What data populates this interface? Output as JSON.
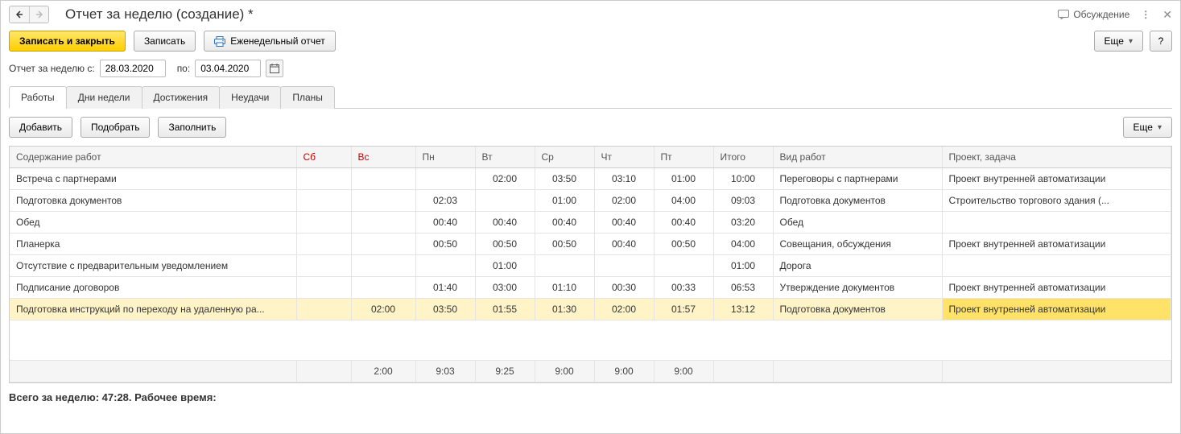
{
  "header": {
    "title": "Отчет за неделю (создание) *",
    "discussion": "Обсуждение"
  },
  "toolbar": {
    "save_close": "Записать и закрыть",
    "save": "Записать",
    "weekly_report": "Еженедельный отчет",
    "more": "Еще",
    "help": "?"
  },
  "dates": {
    "label_from": "Отчет за неделю с:",
    "from": "28.03.2020",
    "label_to": "по:",
    "to": "03.04.2020"
  },
  "tabs": {
    "t0": "Работы",
    "t1": "Дни недели",
    "t2": "Достижения",
    "t3": "Неудачи",
    "t4": "Планы"
  },
  "sub": {
    "add": "Добавить",
    "pick": "Подобрать",
    "fill": "Заполнить",
    "more": "Еще"
  },
  "cols": {
    "desc": "Содержание работ",
    "sa": "Сб",
    "su": "Вс",
    "mo": "Пн",
    "tu": "Вт",
    "we": "Ср",
    "th": "Чт",
    "fr": "Пт",
    "total": "Итого",
    "kind": "Вид работ",
    "proj": "Проект, задача"
  },
  "rows": [
    {
      "desc": "Встреча с партнерами",
      "sa": "",
      "su": "",
      "mo": "",
      "tu": "02:00",
      "we": "03:50",
      "th": "03:10",
      "fr": "01:00",
      "total": "10:00",
      "kind": "Переговоры с партнерами",
      "proj": "Проект внутренней автоматизации"
    },
    {
      "desc": "Подготовка документов",
      "sa": "",
      "su": "",
      "mo": "02:03",
      "tu": "",
      "we": "01:00",
      "th": "02:00",
      "fr": "04:00",
      "total": "09:03",
      "kind": "Подготовка документов",
      "proj": "Строительство торгового здания (..."
    },
    {
      "desc": "Обед",
      "sa": "",
      "su": "",
      "mo": "00:40",
      "tu": "00:40",
      "we": "00:40",
      "th": "00:40",
      "fr": "00:40",
      "total": "03:20",
      "kind": "Обед",
      "proj": ""
    },
    {
      "desc": "Планерка",
      "sa": "",
      "su": "",
      "mo": "00:50",
      "tu": "00:50",
      "we": "00:50",
      "th": "00:40",
      "fr": "00:50",
      "total": "04:00",
      "kind": "Совещания, обсуждения",
      "proj": "Проект внутренней автоматизации"
    },
    {
      "desc": "Отсутствие с предварительным уведомлением",
      "sa": "",
      "su": "",
      "mo": "",
      "tu": "01:00",
      "we": "",
      "th": "",
      "fr": "",
      "total": "01:00",
      "kind": "Дорога",
      "proj": ""
    },
    {
      "desc": "Подписание договоров",
      "sa": "",
      "su": "",
      "mo": "01:40",
      "tu": "03:00",
      "we": "01:10",
      "th": "00:30",
      "fr": "00:33",
      "total": "06:53",
      "kind": "Утверждение документов",
      "proj": "Проект внутренней автоматизации"
    },
    {
      "desc": "Подготовка инструкций по переходу на удаленную ра...",
      "sa": "",
      "su": "02:00",
      "mo": "03:50",
      "tu": "01:55",
      "we": "01:30",
      "th": "02:00",
      "fr": "01:57",
      "total": "13:12",
      "kind": "Подготовка документов",
      "proj": "Проект внутренней автоматизации",
      "selected": true
    }
  ],
  "footer": {
    "sa": "",
    "su": "2:00",
    "mo": "9:03",
    "tu": "9:25",
    "we": "9:00",
    "th": "9:00",
    "fr": "9:00"
  },
  "summary": {
    "p1": "Всего за неделю: ",
    "total": "47:28",
    "p2": ". Рабочее время:"
  }
}
